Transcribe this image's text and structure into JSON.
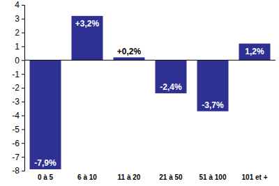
{
  "chart_data": {
    "type": "bar",
    "categories": [
      "0 à 5",
      "6 à 10",
      "11 à 20",
      "21 à 50",
      "51 à 100",
      "101 et +"
    ],
    "values": [
      -7.9,
      3.2,
      0.2,
      -2.4,
      -3.7,
      1.2
    ],
    "value_labels": [
      "-7,9%",
      "+3,2%",
      "+0,2%",
      "-2,4%",
      "-3,7%",
      "1,2%"
    ],
    "color": "#2e3192",
    "ylim": [
      -8,
      4
    ],
    "yticks": [
      -8,
      -7,
      -6,
      -5,
      -4,
      -3,
      -2,
      -1,
      0,
      1,
      2,
      3,
      4
    ],
    "grid": false,
    "data_labels": true
  }
}
